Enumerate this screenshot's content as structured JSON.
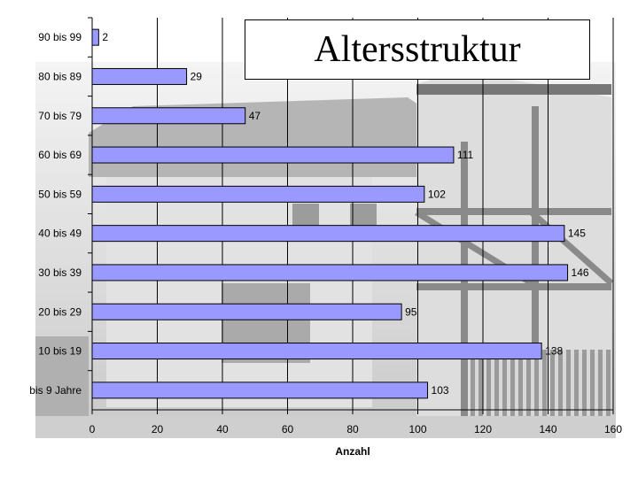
{
  "chart_data": {
    "type": "bar",
    "orientation": "horizontal",
    "title": "Altersstruktur",
    "xlabel": "Anzahl",
    "ylabel": "",
    "xlim": [
      0,
      160
    ],
    "xticks": [
      0,
      20,
      40,
      60,
      80,
      100,
      120,
      140,
      160
    ],
    "categories": [
      "90 bis 99",
      "80 bis 89",
      "70 bis 79",
      "60 bis 69",
      "50 bis 59",
      "40 bis 49",
      "30 bis 39",
      "20 bis 29",
      "10 bis 19",
      "bis 9 Jahre"
    ],
    "values": [
      2,
      29,
      47,
      111,
      102,
      145,
      146,
      95,
      138,
      103
    ],
    "grid": true,
    "legend": "none",
    "bar_color": "#9999ff",
    "background": "photo of half-timbered house (greyscale)"
  }
}
